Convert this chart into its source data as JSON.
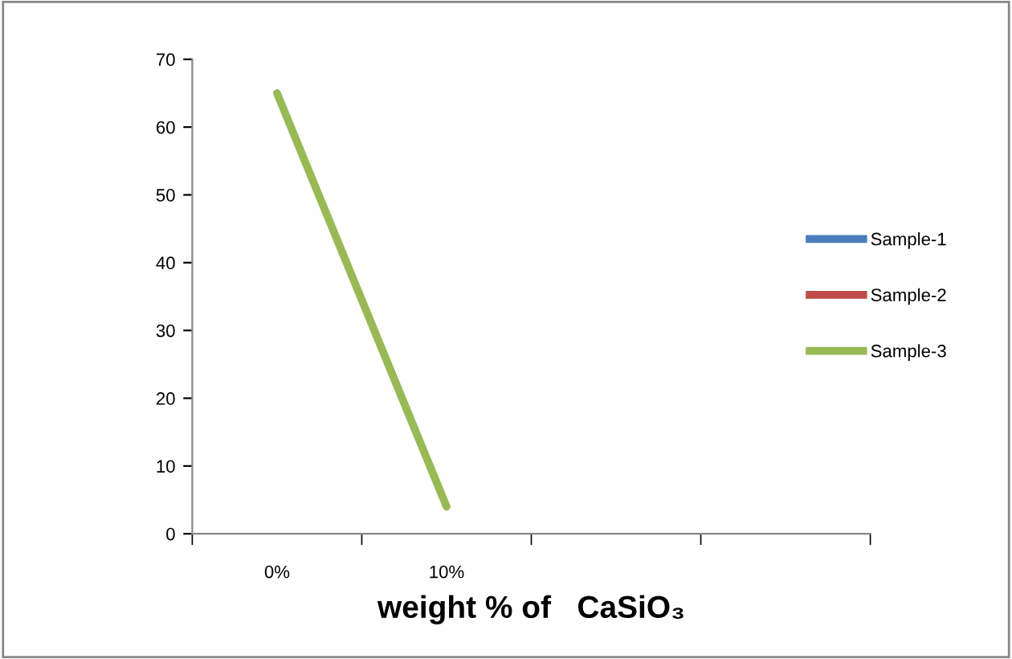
{
  "chart_data": {
    "type": "line",
    "xlabel": "weight % of   CaSiO₃",
    "categories": [
      "0%",
      "10%",
      null,
      null
    ],
    "series": [
      {
        "name": "Sample-1",
        "color": "#4a7ebb",
        "values": [
          null,
          null,
          null,
          null
        ]
      },
      {
        "name": "Sample-2",
        "color": "#be4b48",
        "values": [
          null,
          null,
          null,
          null
        ]
      },
      {
        "name": "Sample-3",
        "color": "#98b954",
        "values": [
          65,
          4,
          null,
          null
        ]
      }
    ],
    "ylim": [
      0,
      70
    ],
    "yticks": [
      0,
      10,
      20,
      30,
      40,
      50,
      60,
      70
    ],
    "grid": false,
    "legend": "right",
    "marker": "none",
    "line_style": "solid"
  }
}
